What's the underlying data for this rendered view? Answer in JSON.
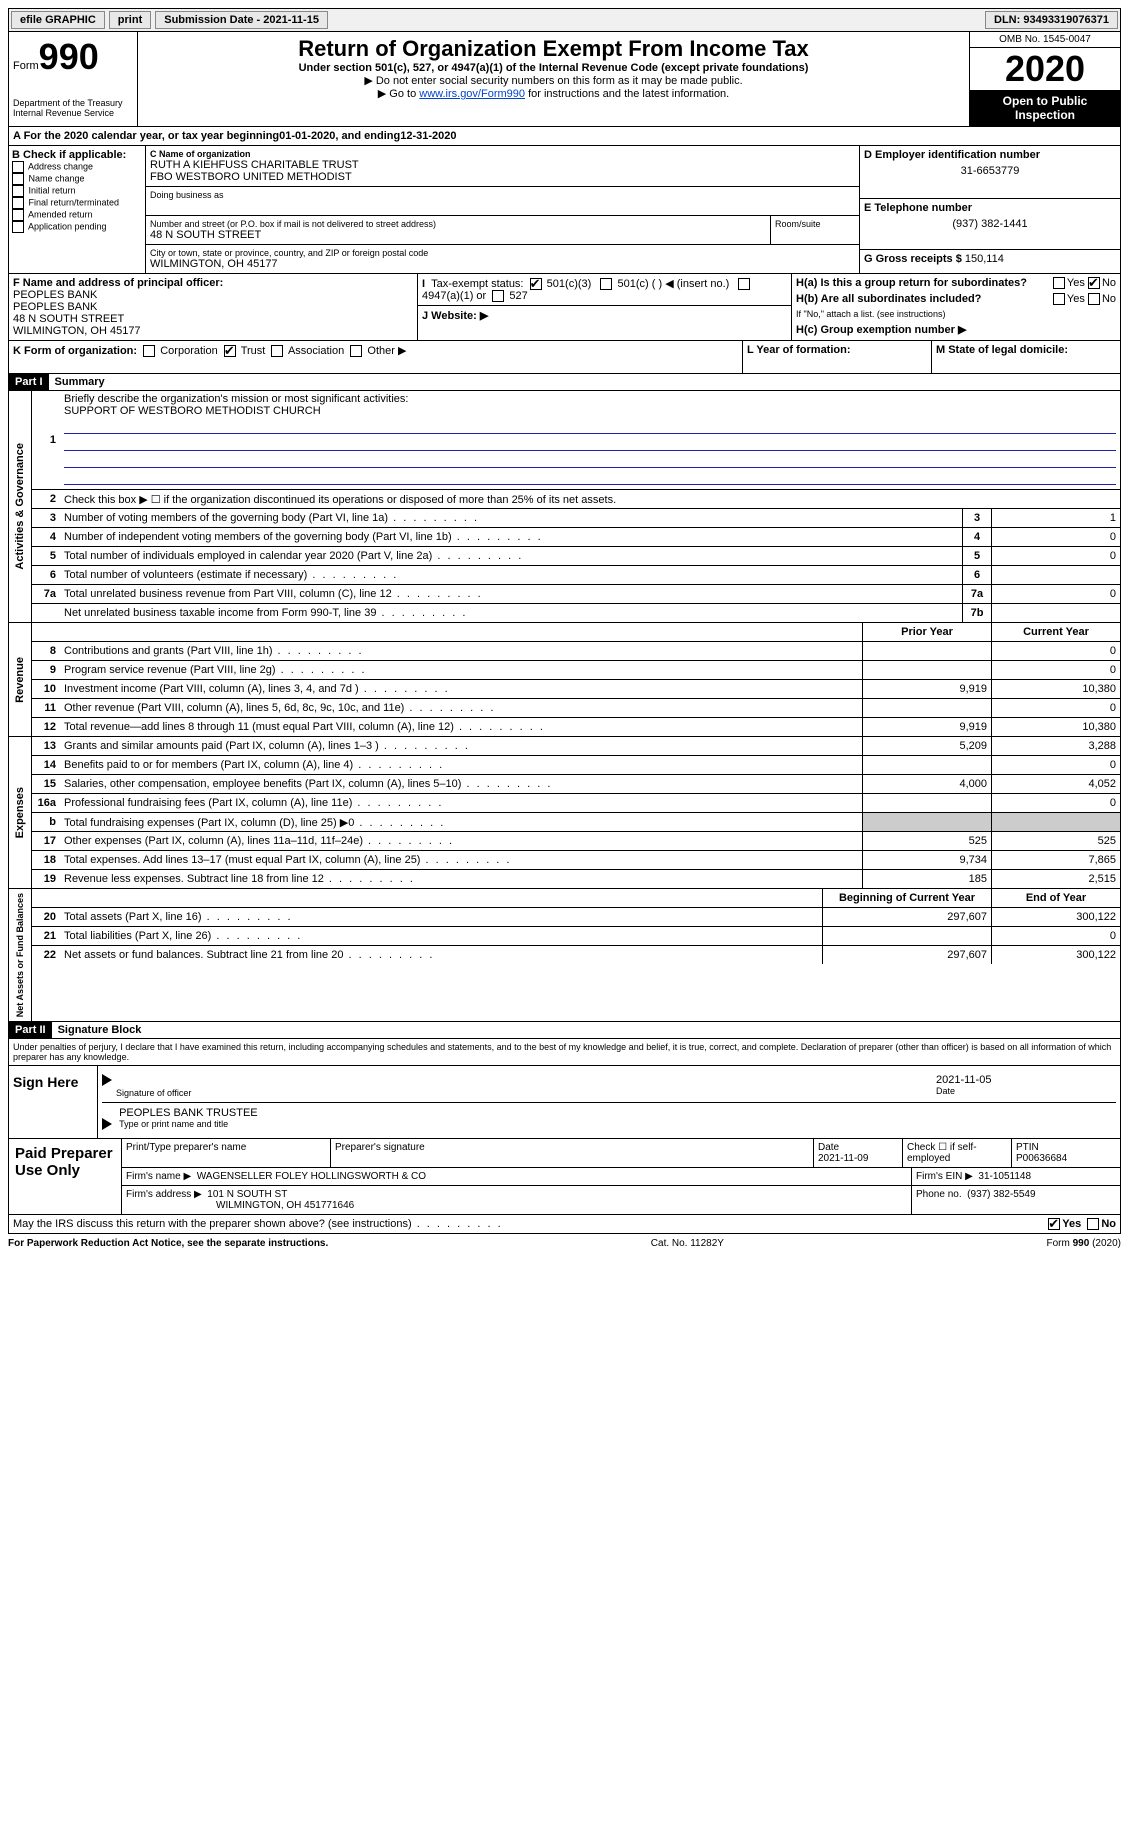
{
  "topbar": {
    "efile": "efile GRAPHIC",
    "print": "print",
    "submission_label": "Submission Date - ",
    "submission_date": "2021-11-15",
    "dln_label": "DLN: ",
    "dln": "93493319076371"
  },
  "header": {
    "form_label": "Form",
    "form_number": "990",
    "dept": "Department of the Treasury\nInternal Revenue Service",
    "title": "Return of Organization Exempt From Income Tax",
    "subtitle": "Under section 501(c), 527, or 4947(a)(1) of the Internal Revenue Code (except private foundations)",
    "note1": "▶ Do not enter social security numbers on this form as it may be made public.",
    "note2_pre": "▶ Go to ",
    "note2_link": "www.irs.gov/Form990",
    "note2_post": " for instructions and the latest information.",
    "omb": "OMB No. 1545-0047",
    "year": "2020",
    "inspection": "Open to Public Inspection"
  },
  "sectionA": {
    "label": "A For the 2020 calendar year, or tax year beginning ",
    "begin": "01-01-2020",
    "mid": " , and ending ",
    "end": "12-31-2020"
  },
  "sectionB": {
    "label": "B Check if applicable:",
    "items": [
      "Address change",
      "Name change",
      "Initial return",
      "Final return/terminated",
      "Amended return",
      "Application pending"
    ]
  },
  "sectionC": {
    "name_label": "C Name of organization",
    "name1": "RUTH A KIEHFUSS CHARITABLE TRUST",
    "name2": "FBO WESTBORO UNITED METHODIST",
    "dba_label": "Doing business as",
    "addr_label": "Number and street (or P.O. box if mail is not delivered to street address)",
    "room_label": "Room/suite",
    "addr": "48 N SOUTH STREET",
    "city_label": "City or town, state or province, country, and ZIP or foreign postal code",
    "city": "WILMINGTON, OH  45177"
  },
  "sectionD": {
    "label": "D Employer identification number",
    "ein": "31-6653779"
  },
  "sectionE": {
    "label": "E Telephone number",
    "phone": "(937) 382-1441"
  },
  "sectionG": {
    "label": "G Gross receipts $ ",
    "amount": "150,114"
  },
  "sectionF": {
    "label": "F Name and address of principal officer:",
    "line1": "PEOPLES BANK",
    "line2": "PEOPLES BANK",
    "line3": "48 N SOUTH STREET",
    "line4": "WILMINGTON, OH  45177"
  },
  "sectionH": {
    "a": "H(a)  Is this a group return for subordinates?",
    "b": "H(b)  Are all subordinates included?",
    "note": "If \"No,\" attach a list. (see instructions)",
    "c": "H(c)  Group exemption number ▶",
    "yes": "Yes",
    "no": "No"
  },
  "sectionI": {
    "label": "I  Tax-exempt status:",
    "opt1": "501(c)(3)",
    "opt2": "501(c) (  ) ◀ (insert no.)",
    "opt3": "4947(a)(1) or",
    "opt4": "527"
  },
  "sectionJ": {
    "label": "J  Website: ▶"
  },
  "sectionK": {
    "label": "K Form of organization:",
    "opts": [
      "Corporation",
      "Trust",
      "Association",
      "Other ▶"
    ]
  },
  "sectionL": {
    "label": "L Year of formation:"
  },
  "sectionM": {
    "label": "M State of legal domicile:"
  },
  "part1": {
    "header": "Part I",
    "title": "Summary",
    "line1": "Briefly describe the organization's mission or most significant activities:",
    "mission": "SUPPORT OF WESTBORO METHODIST CHURCH",
    "line2": "Check this box ▶ ☐  if the organization discontinued its operations or disposed of more than 25% of its net assets.",
    "governance_label": "Activities & Governance",
    "revenue_label": "Revenue",
    "expenses_label": "Expenses",
    "netassets_label": "Net Assets or Fund Balances",
    "prior_year": "Prior Year",
    "current_year": "Current Year",
    "beginning": "Beginning of Current Year",
    "endofyear": "End of Year",
    "rows_gov": [
      {
        "n": "3",
        "t": "Number of voting members of the governing body (Part VI, line 1a)",
        "b": "3",
        "v": "1"
      },
      {
        "n": "4",
        "t": "Number of independent voting members of the governing body (Part VI, line 1b)",
        "b": "4",
        "v": "0"
      },
      {
        "n": "5",
        "t": "Total number of individuals employed in calendar year 2020 (Part V, line 2a)",
        "b": "5",
        "v": "0"
      },
      {
        "n": "6",
        "t": "Total number of volunteers (estimate if necessary)",
        "b": "6",
        "v": ""
      },
      {
        "n": "7a",
        "t": "Total unrelated business revenue from Part VIII, column (C), line 12",
        "b": "7a",
        "v": "0"
      },
      {
        "n": "",
        "t": "Net unrelated business taxable income from Form 990-T, line 39",
        "b": "7b",
        "v": ""
      }
    ],
    "rows_rev": [
      {
        "n": "8",
        "t": "Contributions and grants (Part VIII, line 1h)",
        "p": "",
        "c": "0"
      },
      {
        "n": "9",
        "t": "Program service revenue (Part VIII, line 2g)",
        "p": "",
        "c": "0"
      },
      {
        "n": "10",
        "t": "Investment income (Part VIII, column (A), lines 3, 4, and 7d )",
        "p": "9,919",
        "c": "10,380"
      },
      {
        "n": "11",
        "t": "Other revenue (Part VIII, column (A), lines 5, 6d, 8c, 9c, 10c, and 11e)",
        "p": "",
        "c": "0"
      },
      {
        "n": "12",
        "t": "Total revenue—add lines 8 through 11 (must equal Part VIII, column (A), line 12)",
        "p": "9,919",
        "c": "10,380"
      }
    ],
    "rows_exp": [
      {
        "n": "13",
        "t": "Grants and similar amounts paid (Part IX, column (A), lines 1–3 )",
        "p": "5,209",
        "c": "3,288"
      },
      {
        "n": "14",
        "t": "Benefits paid to or for members (Part IX, column (A), line 4)",
        "p": "",
        "c": "0"
      },
      {
        "n": "15",
        "t": "Salaries, other compensation, employee benefits (Part IX, column (A), lines 5–10)",
        "p": "4,000",
        "c": "4,052"
      },
      {
        "n": "16a",
        "t": "Professional fundraising fees (Part IX, column (A), line 11e)",
        "p": "",
        "c": "0"
      },
      {
        "n": "b",
        "t": "Total fundraising expenses (Part IX, column (D), line 25) ▶0",
        "p": "shade",
        "c": "shade"
      },
      {
        "n": "17",
        "t": "Other expenses (Part IX, column (A), lines 11a–11d, 11f–24e)",
        "p": "525",
        "c": "525"
      },
      {
        "n": "18",
        "t": "Total expenses. Add lines 13–17 (must equal Part IX, column (A), line 25)",
        "p": "9,734",
        "c": "7,865"
      },
      {
        "n": "19",
        "t": "Revenue less expenses. Subtract line 18 from line 12",
        "p": "185",
        "c": "2,515"
      }
    ],
    "rows_net": [
      {
        "n": "20",
        "t": "Total assets (Part X, line 16)",
        "p": "297,607",
        "c": "300,122"
      },
      {
        "n": "21",
        "t": "Total liabilities (Part X, line 26)",
        "p": "",
        "c": "0"
      },
      {
        "n": "22",
        "t": "Net assets or fund balances. Subtract line 21 from line 20",
        "p": "297,607",
        "c": "300,122"
      }
    ]
  },
  "part2": {
    "header": "Part II",
    "title": "Signature Block",
    "penalty": "Under penalties of perjury, I declare that I have examined this return, including accompanying schedules and statements, and to the best of my knowledge and belief, it is true, correct, and complete. Declaration of preparer (other than officer) is based on all information of which preparer has any knowledge.",
    "sign_here": "Sign Here",
    "sig_officer": "Signature of officer",
    "sig_date": "2021-11-05",
    "date_label": "Date",
    "officer_name": "PEOPLES BANK  TRUSTEE",
    "type_label": "Type or print name and title",
    "paid": "Paid Preparer Use Only",
    "prep_name_label": "Print/Type preparer's name",
    "prep_sig_label": "Preparer's signature",
    "prep_date_label": "Date",
    "prep_date": "2021-11-09",
    "check_label": "Check ☐ if self-employed",
    "ptin_label": "PTIN",
    "ptin": "P00636684",
    "firm_name_label": "Firm's name    ▶",
    "firm_name": "WAGENSELLER FOLEY HOLLINGSWORTH & CO",
    "firm_ein_label": "Firm's EIN ▶",
    "firm_ein": "31-1051148",
    "firm_addr_label": "Firm's address ▶",
    "firm_addr1": "101 N SOUTH ST",
    "firm_addr2": "WILMINGTON, OH  451771646",
    "phone_label": "Phone no.",
    "phone": "(937) 382-5549",
    "discuss": "May the IRS discuss this return with the preparer shown above? (see instructions)",
    "yes": "Yes",
    "no": "No"
  },
  "footer": {
    "left": "For Paperwork Reduction Act Notice, see the separate instructions.",
    "center": "Cat. No. 11282Y",
    "right": "Form 990 (2020)"
  }
}
